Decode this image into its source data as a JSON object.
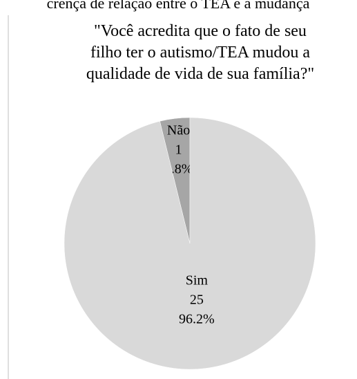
{
  "caption": "crença de relação entre o TEA e a mudança",
  "chart_data": {
    "type": "pie",
    "title": [
      "\"Você acredita que o fato de seu",
      "filho ter o autismo/TEA mudou a",
      "qualidade de vida de sua família?\""
    ],
    "categories": [
      "Não",
      "Sim"
    ],
    "values": [
      1,
      25
    ],
    "percentage_labels": [
      "3.8%",
      "96.2%"
    ],
    "colors": [
      "#a6a6a6",
      "#d9d9d9"
    ]
  }
}
